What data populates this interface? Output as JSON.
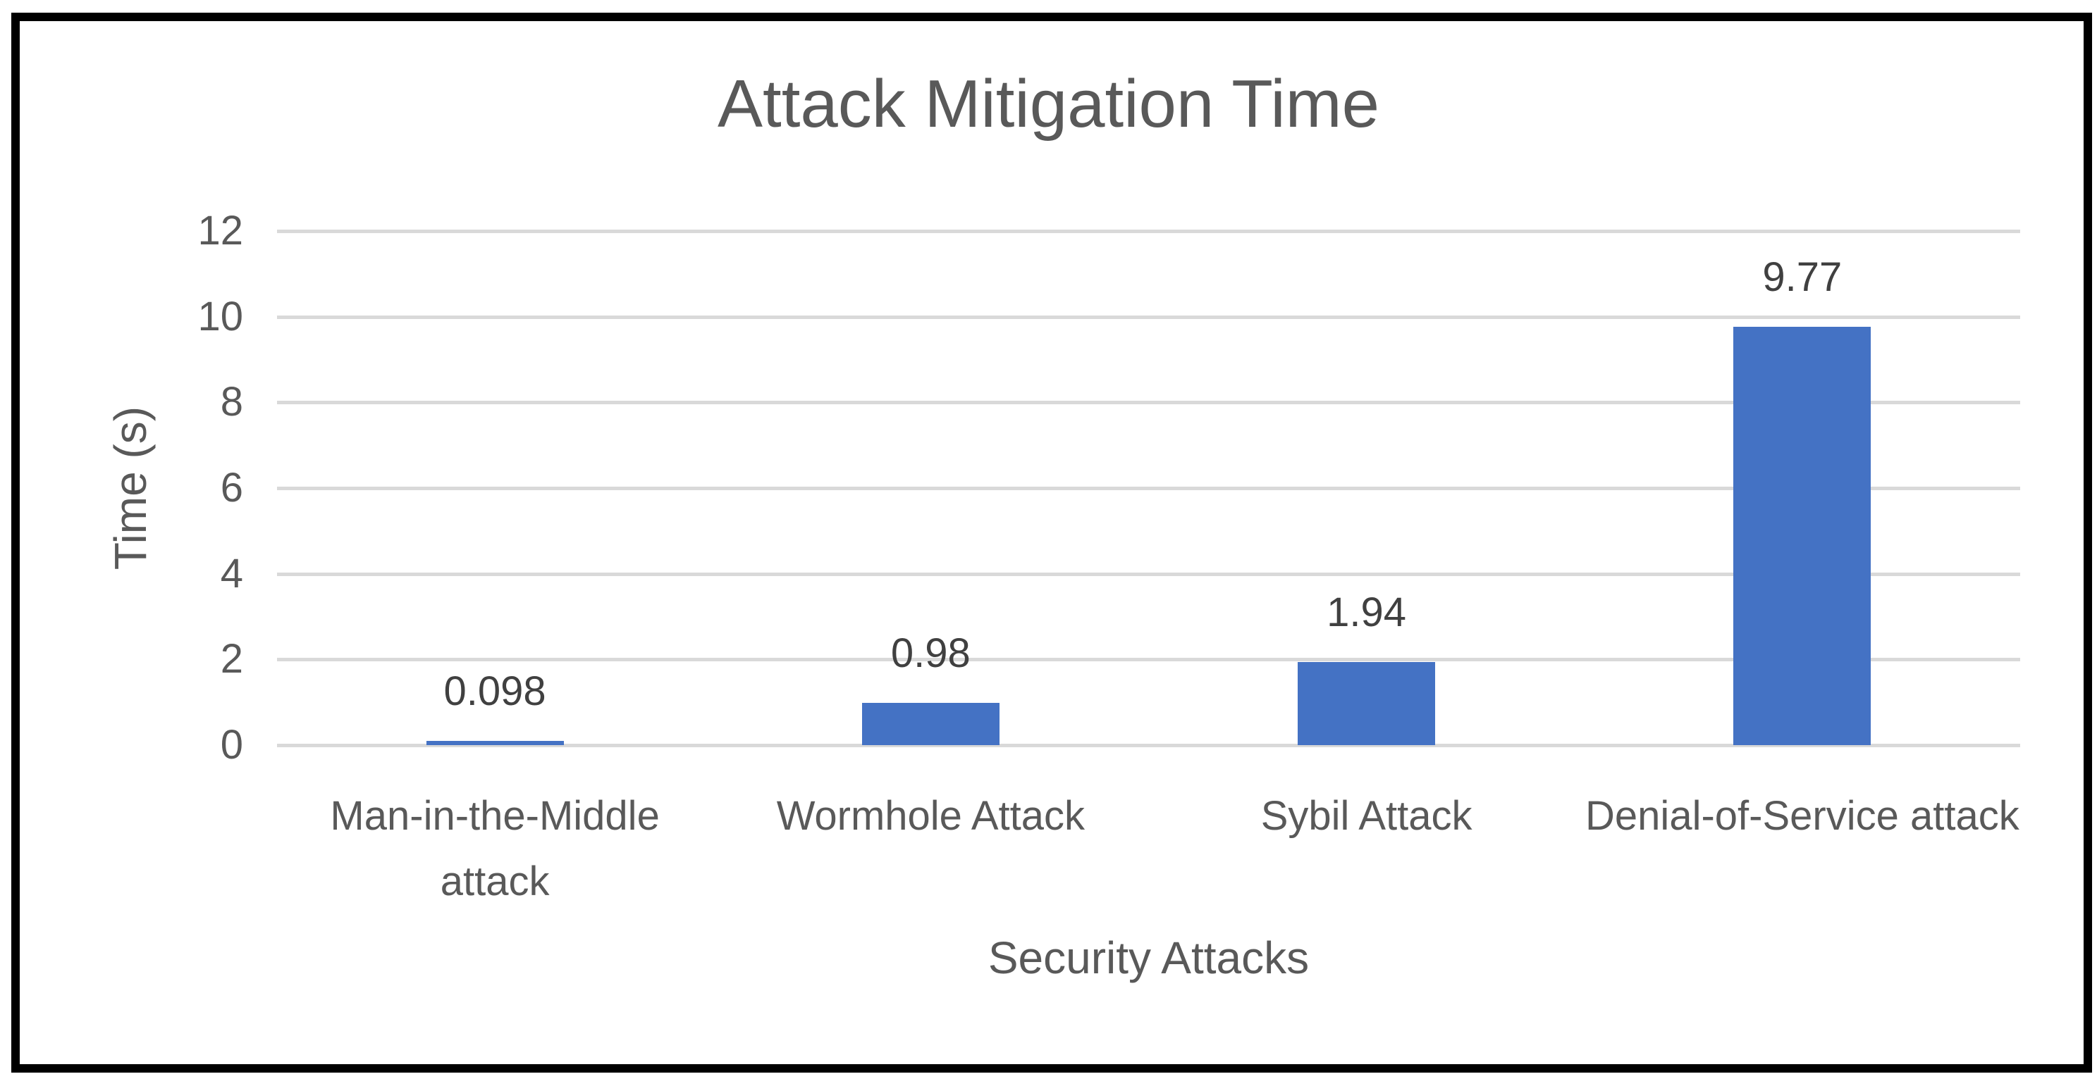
{
  "chart_data": {
    "type": "bar",
    "title": "Attack Mitigation Time",
    "xlabel": "Security Attacks",
    "ylabel": "Time (s)",
    "categories": [
      "Man-in-the-Middle attack",
      "Wormhole Attack",
      "Sybil Attack",
      "Denial-of-Service attack"
    ],
    "values": [
      0.098,
      0.98,
      1.94,
      9.77
    ],
    "data_labels": [
      "0.098",
      "0.98",
      "1.94",
      "9.77"
    ],
    "ylim": [
      0,
      12
    ],
    "yticks": [
      0,
      2,
      4,
      6,
      8,
      10,
      12
    ],
    "grid": true,
    "legend": false,
    "colors": {
      "bar": "#4472C4",
      "gridline": "#D9D9D9",
      "axis_text": "#595959",
      "title_text": "#595959",
      "data_label_text": "#404040",
      "frame_border": "#000000",
      "background": "#FFFFFF"
    }
  }
}
